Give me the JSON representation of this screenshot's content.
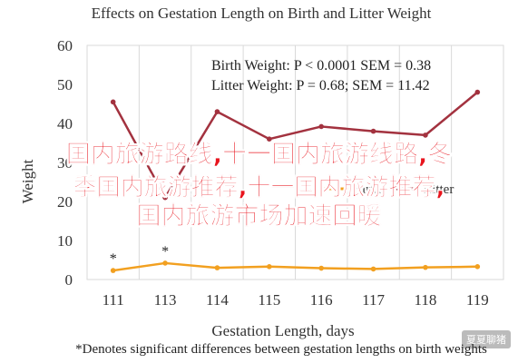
{
  "chart_data": {
    "type": "line",
    "title": "Effects on Gestation Length on Birth and Litter Weight",
    "xlabel": "Gestation Length, days",
    "ylabel": "Weight",
    "categories": [
      "111",
      "113",
      "114",
      "115",
      "116",
      "117",
      "118",
      "119"
    ],
    "ylim": [
      0,
      60
    ],
    "yticks": [
      0,
      10,
      20,
      30,
      40,
      50,
      60
    ],
    "grid": true,
    "series": [
      {
        "name": "Birth Weight",
        "color": "#f2a020",
        "values": [
          2.3,
          4.2,
          3.0,
          3.3,
          2.9,
          2.7,
          3.1,
          3.3
        ]
      },
      {
        "name": "Litter Weight",
        "color": "#a3323f",
        "values": [
          45.5,
          21,
          43,
          36,
          39.2,
          38,
          37,
          48
        ]
      }
    ],
    "legend": {
      "placement": "right",
      "entries": [
        "Birth",
        "Litter"
      ]
    },
    "annotations": {
      "line1": "Birth Weight: P < 0.0001 SEM = 0.38",
      "line2": "Litter Weight: P = 0.68; SEM = 11.42",
      "asterisks": [
        {
          "category": "111",
          "text": "*"
        },
        {
          "category": "113",
          "text": "*"
        }
      ]
    },
    "footnote": "*Denotes significant differences between gestation lengths on birth weights"
  },
  "overlay": {
    "line1": "国内旅游路线,十一国内旅游线路,冬",
    "line2": "季国内旅游推荐,十一国内旅游推荐,",
    "line3": "国内旅游市场加速回暖"
  },
  "watermark": "夏夏聊猪"
}
